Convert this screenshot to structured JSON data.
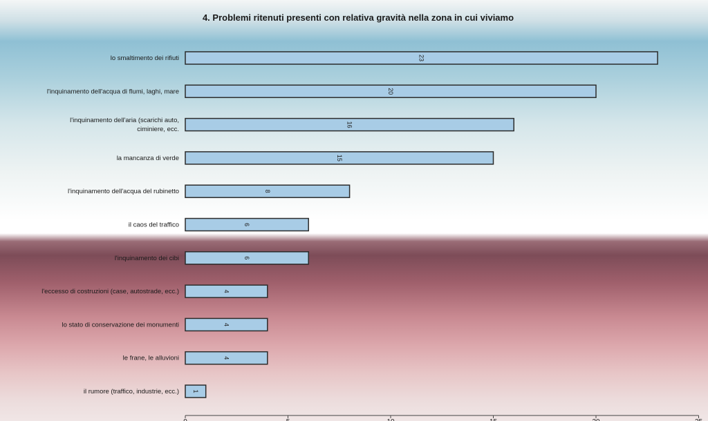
{
  "chart_data": {
    "type": "bar",
    "orientation": "horizontal",
    "title": "4. Problemi ritenuti presenti con relativa gravità nella zona in cui viviamo",
    "categories": [
      "lo smaltimento dei rifiuti",
      "l'inquinamento dell'acqua di flumi, laghi, mare",
      "l'inquinamento dell'aria (scarichi auto,\nciminiere, ecc.",
      "la mancanza di verde",
      "l'inquinamento dell'acqua del rubinetto",
      "il caos del traffico",
      "l'inquinamento dei cibi",
      "l'eccesso di costruzioni (case, autostrade, ecc.)",
      "lo stato di conservazione dei monumenti",
      "le frane, le alluvioni",
      "il rumore (traffico, industrie, ecc.)"
    ],
    "values": [
      23,
      20,
      16,
      15,
      8,
      6,
      6,
      4,
      4,
      4,
      1
    ],
    "data_labels": [
      "23",
      "20",
      "16",
      "15",
      "8",
      "6",
      "6",
      "4",
      "4",
      "4",
      "1"
    ],
    "xlim": [
      0,
      25
    ],
    "xticks": [
      "0",
      "5",
      "10",
      "15",
      "20",
      "25"
    ],
    "grid": false,
    "bar_color": "#a8cce6",
    "bar_border_color": "#2b2b2b"
  }
}
